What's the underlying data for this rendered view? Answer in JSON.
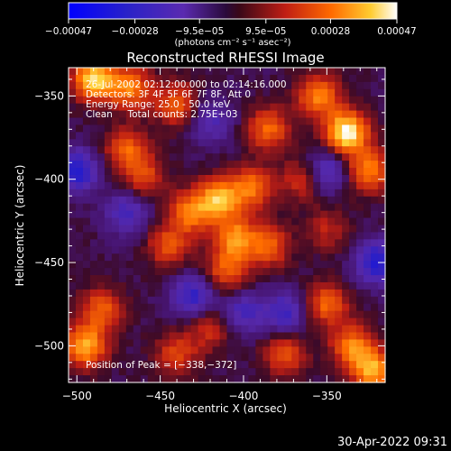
{
  "chart_data": {
    "type": "heatmap",
    "title": "Reconstructed RHESSI Image",
    "xlabel": "Heliocentric X (arcsec)",
    "ylabel": "Heliocentric Y (arcsec)",
    "xlim": [
      -505,
      -315
    ],
    "ylim": [
      -522,
      -333
    ],
    "x_ticks": [
      -500,
      -450,
      -400,
      -350
    ],
    "x_tick_labels": [
      "−500",
      "−450",
      "−400",
      "−350"
    ],
    "y_ticks": [
      -350,
      -400,
      -450,
      -500
    ],
    "y_tick_labels": [
      "−350",
      "−400",
      "−450",
      "−500"
    ],
    "colorbar": {
      "range": [
        -0.00047,
        0.00047
      ],
      "ticks": [
        -0.00047,
        -0.00028,
        -9.5e-05,
        9.5e-05,
        0.00028,
        0.00047
      ],
      "tick_labels": [
        "−0.00047",
        "−0.00028",
        "−9.5e−05",
        "9.5e−05",
        "0.00028",
        "0.00047"
      ],
      "units_label": "(photons cm⁻² s⁻¹ asec⁻²)"
    },
    "info_lines": [
      "26-Jul-2002 02:12:00.000 to 02:14:16.000",
      "Detectors: 3F 4F 5F 6F 7F 8F, Att 0",
      "Energy Range: 25.0 - 50.0 keV",
      "Clean     Total counts: 2.75E+03"
    ],
    "peak_label": "Position of Peak = [−338,−372]",
    "peak": [
      -338,
      -372
    ],
    "hotspots": [
      {
        "x": -490,
        "y": -340,
        "v": 0.00042
      },
      {
        "x": -468,
        "y": -345,
        "v": 0.0003
      },
      {
        "x": -440,
        "y": -355,
        "v": 0.00025
      },
      {
        "x": -338,
        "y": -372,
        "v": 0.00047
      },
      {
        "x": -355,
        "y": -350,
        "v": 0.0003
      },
      {
        "x": -325,
        "y": -395,
        "v": 0.0003
      },
      {
        "x": -385,
        "y": -370,
        "v": 0.00026
      },
      {
        "x": -395,
        "y": -405,
        "v": 0.00028
      },
      {
        "x": -415,
        "y": -412,
        "v": 0.00035
      },
      {
        "x": -432,
        "y": -420,
        "v": 0.00028
      },
      {
        "x": -405,
        "y": -435,
        "v": 0.0003
      },
      {
        "x": -385,
        "y": -440,
        "v": 0.00025
      },
      {
        "x": -445,
        "y": -440,
        "v": 0.00022
      },
      {
        "x": -410,
        "y": -455,
        "v": 0.00024
      },
      {
        "x": -470,
        "y": -382,
        "v": 0.00024
      },
      {
        "x": -460,
        "y": -398,
        "v": 0.0002
      },
      {
        "x": -350,
        "y": -475,
        "v": 0.00026
      },
      {
        "x": -335,
        "y": -500,
        "v": 0.00028
      },
      {
        "x": -322,
        "y": -515,
        "v": 0.00036
      },
      {
        "x": -495,
        "y": -500,
        "v": 0.00036
      },
      {
        "x": -485,
        "y": -478,
        "v": 0.00024
      },
      {
        "x": -440,
        "y": -505,
        "v": 0.0002
      },
      {
        "x": -375,
        "y": -505,
        "v": 0.00022
      },
      {
        "x": -420,
        "y": -490,
        "v": 0.00016
      },
      {
        "x": -365,
        "y": -400,
        "v": 0.00018
      },
      {
        "x": -350,
        "y": -430,
        "v": 0.00014
      }
    ],
    "coldspots": [
      {
        "x": -500,
        "y": -395,
        "v": -0.0003
      },
      {
        "x": -430,
        "y": -470,
        "v": -0.00025
      },
      {
        "x": -400,
        "y": -480,
        "v": -0.0002
      },
      {
        "x": -350,
        "y": -395,
        "v": -0.00022
      },
      {
        "x": -320,
        "y": -450,
        "v": -0.0003
      },
      {
        "x": -375,
        "y": -480,
        "v": -0.00022
      },
      {
        "x": -420,
        "y": -365,
        "v": -0.00018
      },
      {
        "x": -470,
        "y": -420,
        "v": -0.0002
      }
    ],
    "grid": false
  },
  "footer": {
    "timestamp": "30-Apr-2022 09:31"
  }
}
